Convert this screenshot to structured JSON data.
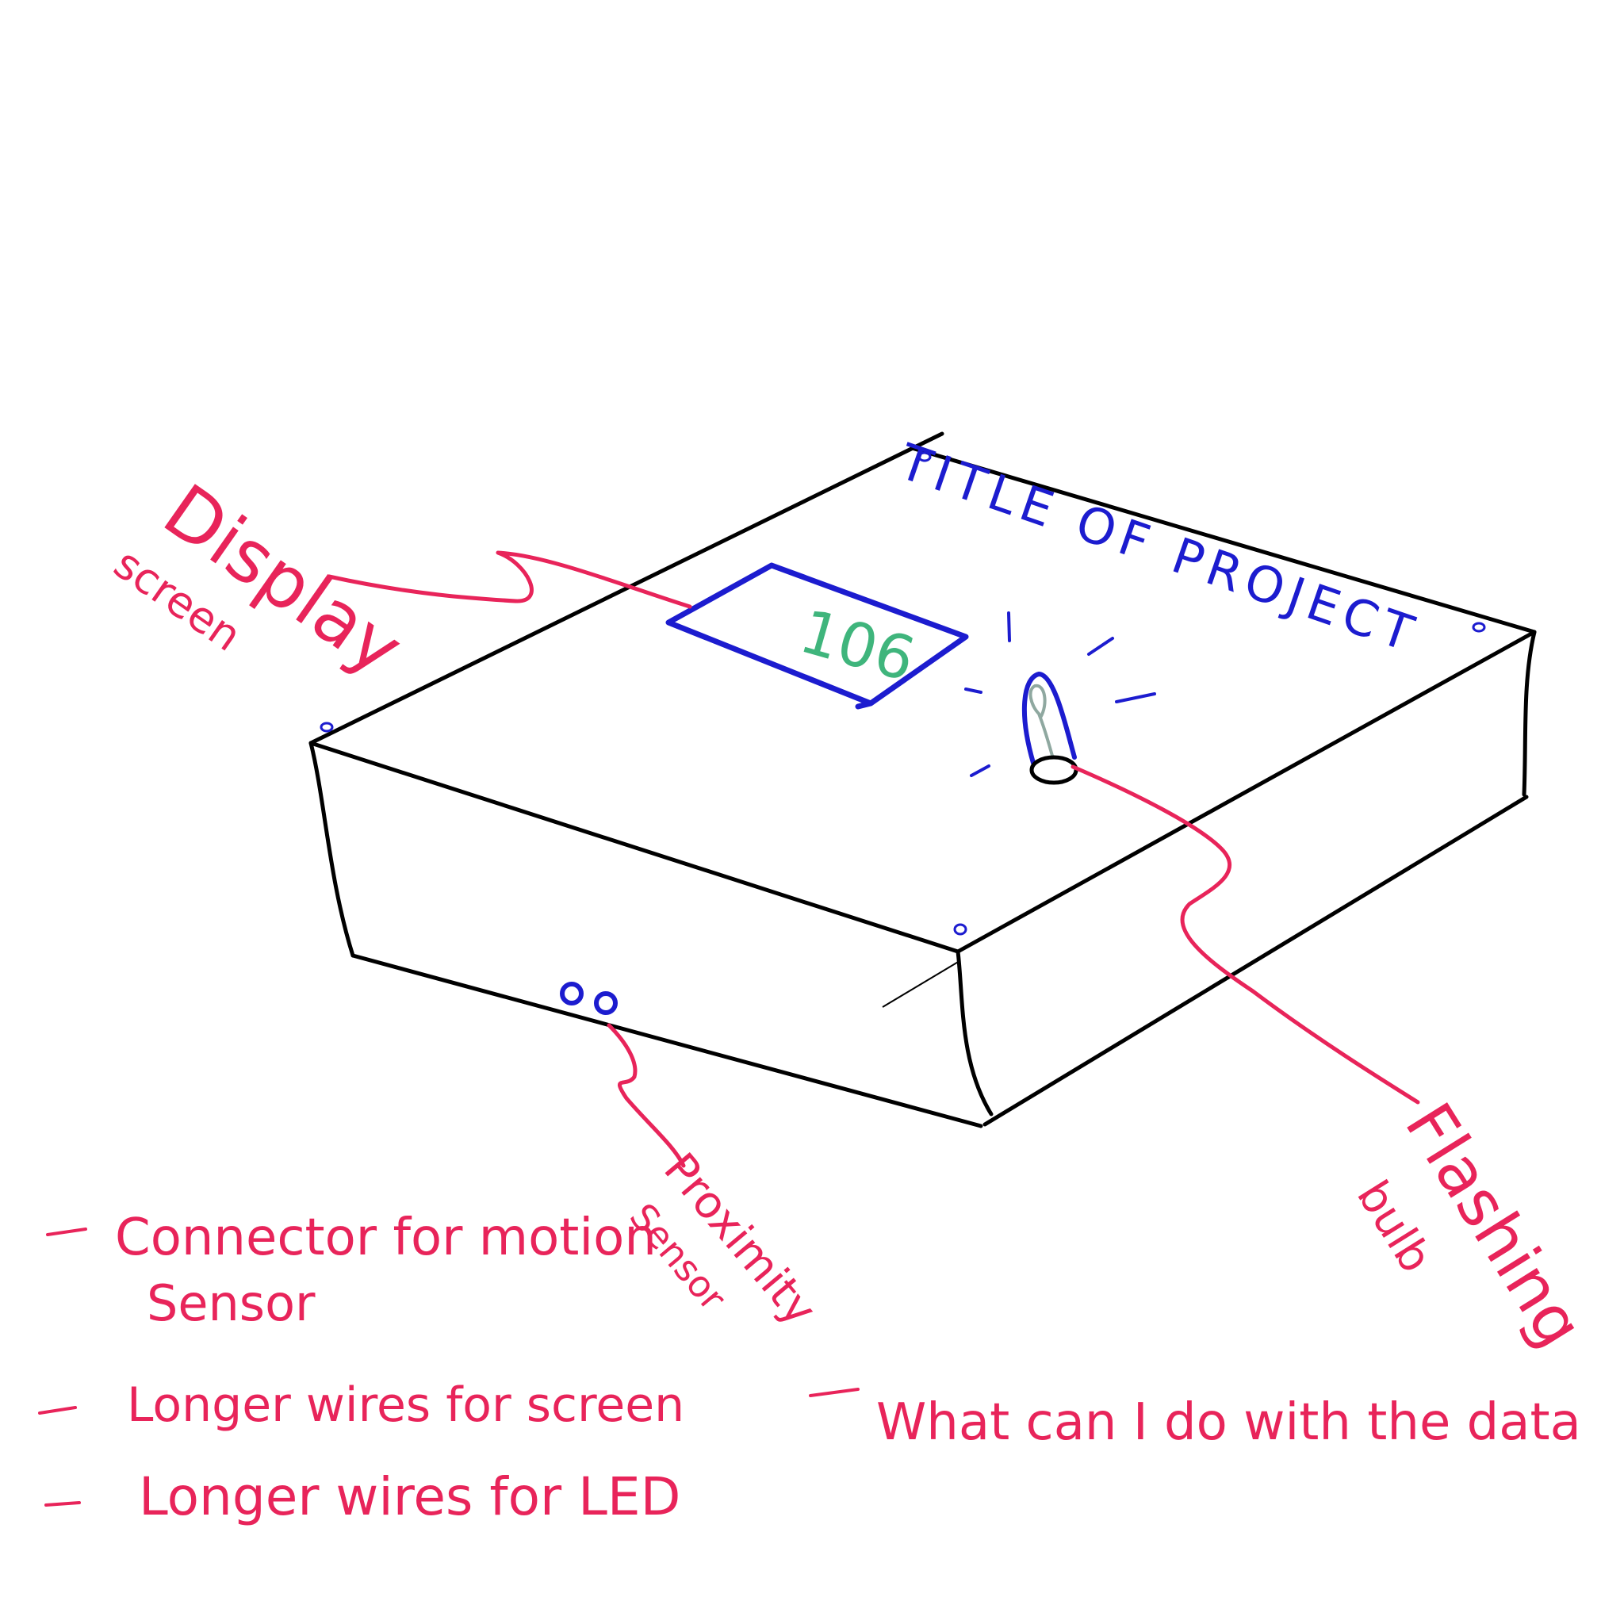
{
  "colors": {
    "outline": "#000000",
    "annotation": "#e8245a",
    "component": "#1c1ccf",
    "readout": "#3fb57c",
    "bulb_filament": "#8fa8a0"
  },
  "box": {
    "title": "TITLE OF PROJECT",
    "display_value": "106"
  },
  "labels": {
    "display_line1": "Display",
    "display_line2": "screen",
    "proximity_line1": "Proximity",
    "proximity_line2": "Sensor",
    "flashing_line1": "Flashing",
    "flashing_line2": "bulb"
  },
  "notes": {
    "note1_line1": "Connector for motion",
    "note1_line2": "Sensor",
    "note2": "Longer wires for screen",
    "note3": "Longer wires for LED",
    "note4": "What can I do with the data"
  }
}
